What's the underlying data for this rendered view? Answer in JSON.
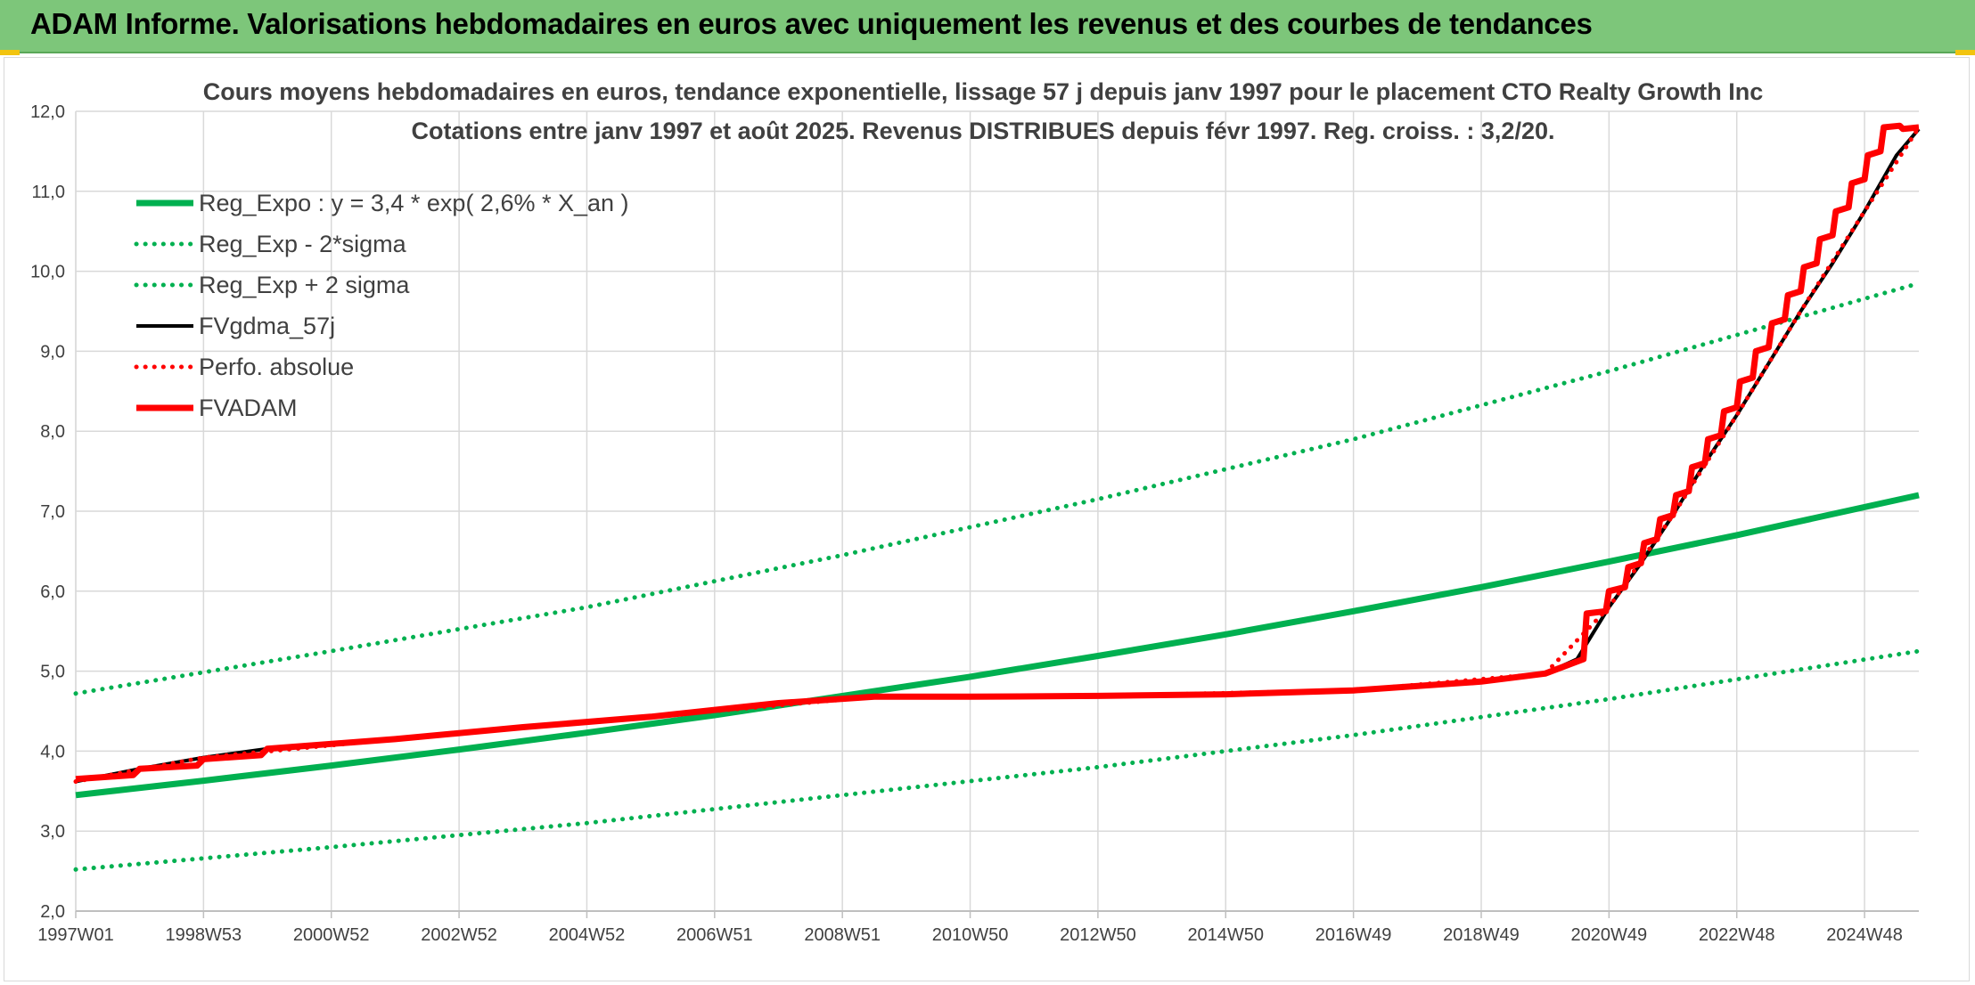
{
  "header": {
    "title": "ADAM Informe. Valorisations hebdomadaires en euros avec uniquement les revenus et des courbes de tendances"
  },
  "colors": {
    "banner": "#7dc67a",
    "trend": "#00b050",
    "fv": "#000000",
    "adam": "#ff0000"
  },
  "chart_data": {
    "type": "line",
    "title": "Cours moyens hebdomadaires en euros, tendance exponentielle, lissage 57 j depuis janv 1997 pour le placement CTO Realty Growth Inc",
    "subtitle": "Cotations entre janv 1997 et août 2025. Revenus DISTRIBUES depuis févr 1997. Reg. croiss. : 3,2/20.",
    "xlabel": "",
    "ylabel": "",
    "x_tick_labels": [
      "1997W01",
      "1998W53",
      "2000W52",
      "2002W52",
      "2004W52",
      "2006W51",
      "2008W51",
      "2010W50",
      "2012W50",
      "2014W50",
      "2016W49",
      "2018W49",
      "2020W49",
      "2022W48",
      "2024W48"
    ],
    "x_tick_years": [
      1997.0,
      1999.0,
      2001.0,
      2003.0,
      2005.0,
      2007.0,
      2009.0,
      2011.0,
      2013.0,
      2015.0,
      2017.0,
      2019.0,
      2021.0,
      2023.0,
      2025.0
    ],
    "xlim": [
      1997.0,
      2025.85
    ],
    "ylim": [
      2.0,
      12.0
    ],
    "y_ticks": [
      "2,0",
      "3,0",
      "4,0",
      "5,0",
      "6,0",
      "7,0",
      "8,0",
      "9,0",
      "10,0",
      "11,0",
      "12,0"
    ],
    "grid": true,
    "legend_position": "top-left",
    "series": [
      {
        "name": "Reg_Expo : y = 3,4 * exp( 2,6% *  X_an )",
        "style": "solid",
        "color": "#00b050",
        "x": [
          1997.0,
          1999.0,
          2001.0,
          2003.0,
          2005.0,
          2007.0,
          2009.0,
          2011.0,
          2013.0,
          2015.0,
          2017.0,
          2019.0,
          2021.0,
          2023.0,
          2025.85
        ],
        "y": [
          3.45,
          3.63,
          3.82,
          4.02,
          4.23,
          4.45,
          4.69,
          4.93,
          5.19,
          5.46,
          5.75,
          6.05,
          6.37,
          6.7,
          7.2
        ]
      },
      {
        "name": "Reg_Exp - 2*sigma",
        "style": "dotted",
        "color": "#00b050",
        "x": [
          1997.0,
          2001.0,
          2005.0,
          2009.0,
          2013.0,
          2017.0,
          2021.0,
          2025.85
        ],
        "y": [
          2.52,
          2.8,
          3.1,
          3.45,
          3.8,
          4.2,
          4.65,
          5.25
        ]
      },
      {
        "name": "Reg_Exp + 2 sigma",
        "style": "dotted",
        "color": "#00b050",
        "x": [
          1997.0,
          2001.0,
          2005.0,
          2009.0,
          2013.0,
          2017.0,
          2021.0,
          2025.85
        ],
        "y": [
          4.72,
          5.25,
          5.8,
          6.45,
          7.15,
          7.9,
          8.75,
          9.85
        ]
      },
      {
        "name": "FVgdma_57j",
        "style": "solid",
        "color": "#000000",
        "x": [
          1997.0,
          1998.0,
          1999.0,
          2000.0,
          2002.0,
          2004.0,
          2006.0,
          2008.0,
          2009.5,
          2011.0,
          2013.0,
          2015.0,
          2017.0,
          2019.0,
          2020.0,
          2020.5,
          2021.0,
          2021.5,
          2022.0,
          2022.5,
          2023.0,
          2023.5,
          2024.0,
          2024.5,
          2025.0,
          2025.5,
          2025.85
        ],
        "y": [
          3.62,
          3.78,
          3.92,
          4.03,
          4.15,
          4.3,
          4.43,
          4.6,
          4.68,
          4.68,
          4.69,
          4.71,
          4.76,
          4.87,
          4.97,
          5.15,
          5.8,
          6.35,
          6.95,
          7.6,
          8.2,
          8.85,
          9.5,
          10.1,
          10.75,
          11.45,
          11.78
        ]
      },
      {
        "name": "Perfo. absolue",
        "style": "dotted",
        "color": "#ff0000",
        "x": [
          1997.0,
          1999.0,
          2002.0,
          2006.0,
          2009.5,
          2013.0,
          2017.0,
          2020.0,
          2021.0,
          2022.0,
          2023.0,
          2024.0,
          2025.0,
          2025.85
        ],
        "y": [
          3.62,
          3.92,
          4.15,
          4.43,
          4.68,
          4.69,
          4.76,
          4.97,
          5.8,
          6.95,
          8.2,
          9.5,
          10.75,
          11.8
        ]
      },
      {
        "name": "FVADAM",
        "style": "solid",
        "color": "#ff0000",
        "x": [
          1997.0,
          1997.9,
          1998.0,
          1998.9,
          1999.0,
          1999.9,
          2000.0,
          2002.0,
          2004.0,
          2006.0,
          2008.0,
          2009.5,
          2011.0,
          2013.0,
          2015.0,
          2017.0,
          2019.0,
          2020.0,
          2020.6,
          2020.65,
          2020.95,
          2021.0,
          2021.25,
          2021.3,
          2021.5,
          2021.55,
          2021.75,
          2021.8,
          2022.0,
          2022.05,
          2022.25,
          2022.3,
          2022.5,
          2022.55,
          2022.75,
          2022.8,
          2023.0,
          2023.05,
          2023.25,
          2023.3,
          2023.5,
          2023.55,
          2023.75,
          2023.8,
          2024.0,
          2024.05,
          2024.25,
          2024.3,
          2024.5,
          2024.55,
          2024.75,
          2024.8,
          2025.0,
          2025.05,
          2025.25,
          2025.3,
          2025.55,
          2025.6,
          2025.85
        ],
        "y": [
          3.65,
          3.7,
          3.78,
          3.82,
          3.9,
          3.95,
          4.03,
          4.15,
          4.3,
          4.43,
          4.6,
          4.68,
          4.68,
          4.69,
          4.71,
          4.76,
          4.87,
          4.97,
          5.15,
          5.72,
          5.75,
          6.0,
          6.05,
          6.3,
          6.35,
          6.6,
          6.65,
          6.9,
          6.95,
          7.2,
          7.25,
          7.55,
          7.6,
          7.9,
          7.95,
          8.25,
          8.3,
          8.62,
          8.67,
          9.0,
          9.05,
          9.35,
          9.4,
          9.7,
          9.75,
          10.05,
          10.1,
          10.4,
          10.45,
          10.75,
          10.8,
          11.1,
          11.15,
          11.45,
          11.5,
          11.8,
          11.82,
          11.78,
          11.8
        ]
      }
    ]
  }
}
